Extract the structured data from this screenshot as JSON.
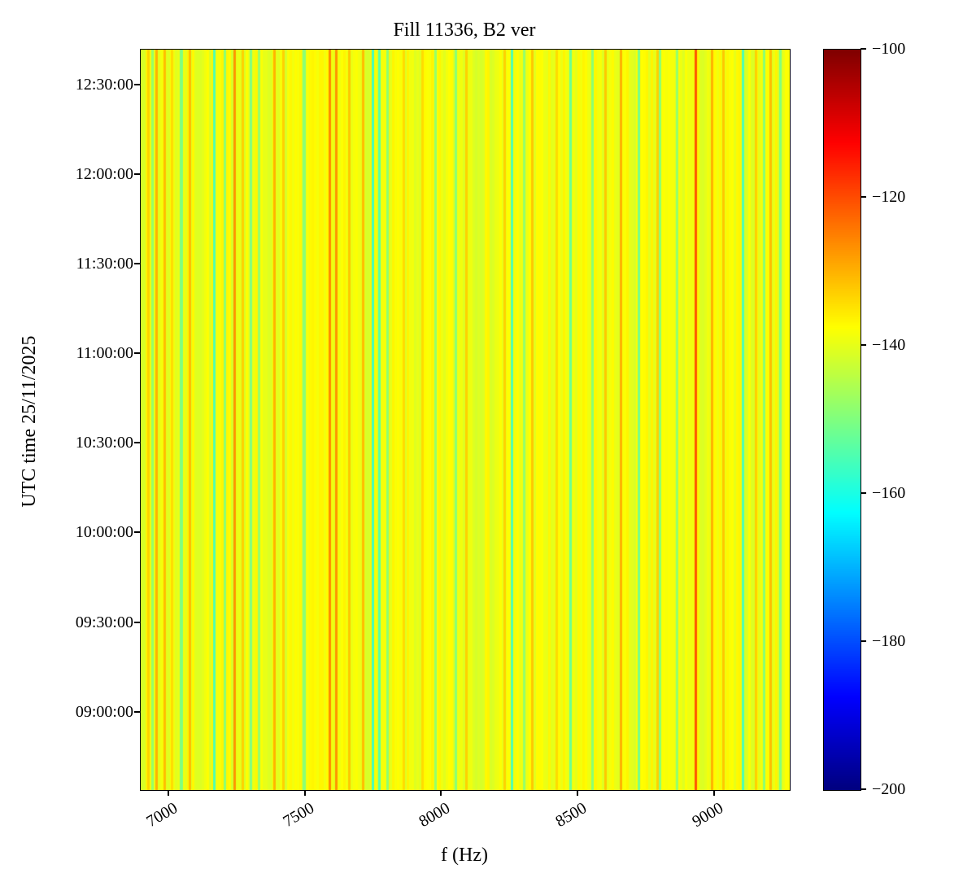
{
  "title": "Fill 11336, B2 ver",
  "chart_data": {
    "type": "heatmap",
    "title": "Fill 11336, B2 ver",
    "xlabel": "f (Hz)",
    "ylabel": "UTC time 25/11/2025",
    "date": "25/11/2025",
    "colormap": "jet",
    "x_range": [
      6896,
      9274
    ],
    "x_ticks": [
      7000,
      7500,
      8000,
      8500,
      9000
    ],
    "y_ticks": [
      "12:30:00",
      "12:00:00",
      "11:30:00",
      "11:00:00",
      "10:30:00",
      "10:00:00",
      "09:30:00",
      "09:00:00"
    ],
    "y_range_minutes": [
      514,
      762
    ],
    "value_range": [
      -200,
      -100
    ],
    "colorbar_ticks": [
      "−100",
      "−120",
      "−140",
      "−160",
      "−180",
      "−200"
    ],
    "legend": "none",
    "grid": false,
    "background_db": -139,
    "background_variation": 2.6,
    "noise_seed": 7,
    "stripe_width_hz": 9,
    "stripes": [
      [
        6925,
        -133
      ],
      [
        6940,
        -148
      ],
      [
        6955,
        -130
      ],
      [
        6985,
        -131
      ],
      [
        7010,
        -134
      ],
      [
        7045,
        -150
      ],
      [
        7075,
        -131
      ],
      [
        7165,
        -155
      ],
      [
        7205,
        -149
      ],
      [
        7240,
        -127
      ],
      [
        7270,
        -133
      ],
      [
        7300,
        -150
      ],
      [
        7330,
        -148
      ],
      [
        7385,
        -130
      ],
      [
        7420,
        -133
      ],
      [
        7495,
        -149
      ],
      [
        7590,
        -126
      ],
      [
        7612,
        -127
      ],
      [
        7660,
        -132
      ],
      [
        7710,
        -131
      ],
      [
        7748,
        -156
      ],
      [
        7772,
        -154
      ],
      [
        7800,
        -149
      ],
      [
        7860,
        -134
      ],
      [
        7930,
        -134
      ],
      [
        7975,
        -148
      ],
      [
        8050,
        -149
      ],
      [
        8090,
        -133
      ],
      [
        8230,
        -133
      ],
      [
        8255,
        -155
      ],
      [
        8300,
        -148
      ],
      [
        8330,
        -132
      ],
      [
        8420,
        -134
      ],
      [
        8470,
        -152
      ],
      [
        8550,
        -149
      ],
      [
        8600,
        -132
      ],
      [
        8655,
        -130
      ],
      [
        8720,
        -151
      ],
      [
        8790,
        -133
      ],
      [
        8800,
        -149
      ],
      [
        8860,
        -148
      ],
      [
        8930,
        -121
      ],
      [
        8990,
        -130
      ],
      [
        9030,
        -132
      ],
      [
        9104,
        -155
      ],
      [
        9150,
        -133
      ],
      [
        9180,
        -149
      ],
      [
        9205,
        -131
      ],
      [
        9240,
        -150
      ]
    ]
  }
}
